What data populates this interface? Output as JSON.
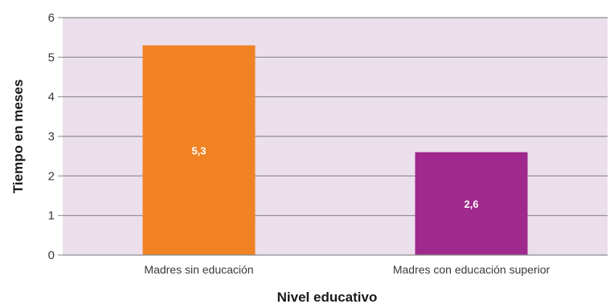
{
  "chart_data": {
    "type": "bar",
    "categories": [
      "Madres sin  educación",
      "Madres con  educación  superior"
    ],
    "values": [
      5.3,
      2.6
    ],
    "data_labels": [
      "5,3",
      "2,6"
    ],
    "bar_colors": [
      "#f08224",
      "#a0298d"
    ],
    "plot_background": "#ecdfec",
    "xlabel": "Nivel educativo",
    "ylabel": "Tiempo en meses",
    "ylim": [
      0,
      6
    ],
    "yticks": [
      "0",
      "1",
      "2",
      "3",
      "4",
      "5",
      "6"
    ],
    "grid": true,
    "legend": "none"
  }
}
